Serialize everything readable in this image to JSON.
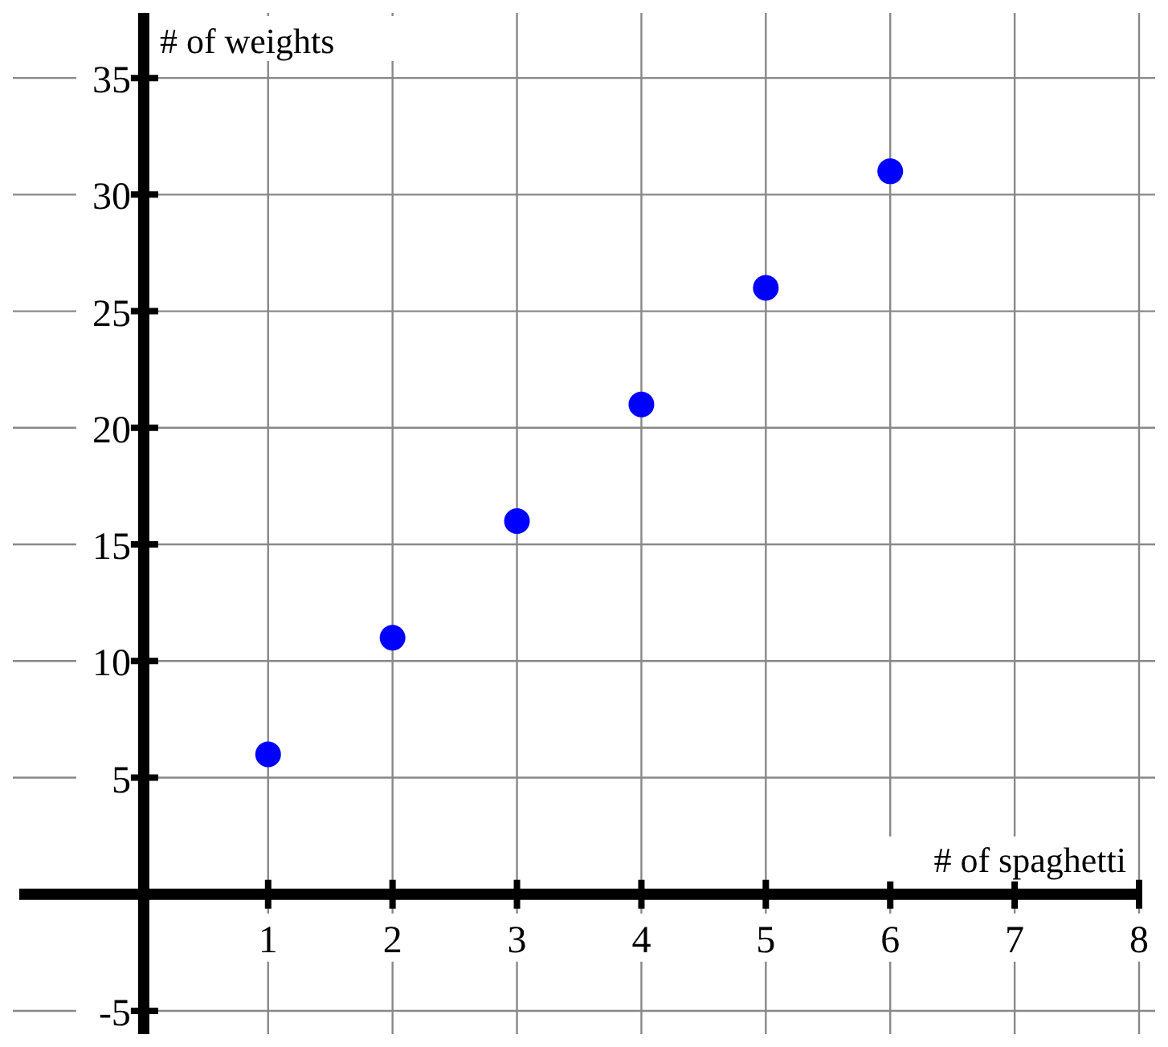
{
  "chart_data": {
    "type": "scatter",
    "xlabel": "# of spaghetti",
    "ylabel": "# of weights",
    "x": [
      1,
      2,
      3,
      4,
      5,
      6
    ],
    "series": [
      {
        "color": "#0000ff",
        "values": [
          6,
          11,
          16,
          21,
          26,
          31
        ]
      }
    ],
    "xlim": [
      -1,
      8
    ],
    "ylim": [
      -6,
      38
    ],
    "xticks": [
      1,
      2,
      3,
      4,
      5,
      6,
      7,
      8
    ],
    "yticks": [
      -5,
      5,
      10,
      15,
      20,
      25,
      30,
      35
    ],
    "grid": true,
    "marker": "circle"
  }
}
